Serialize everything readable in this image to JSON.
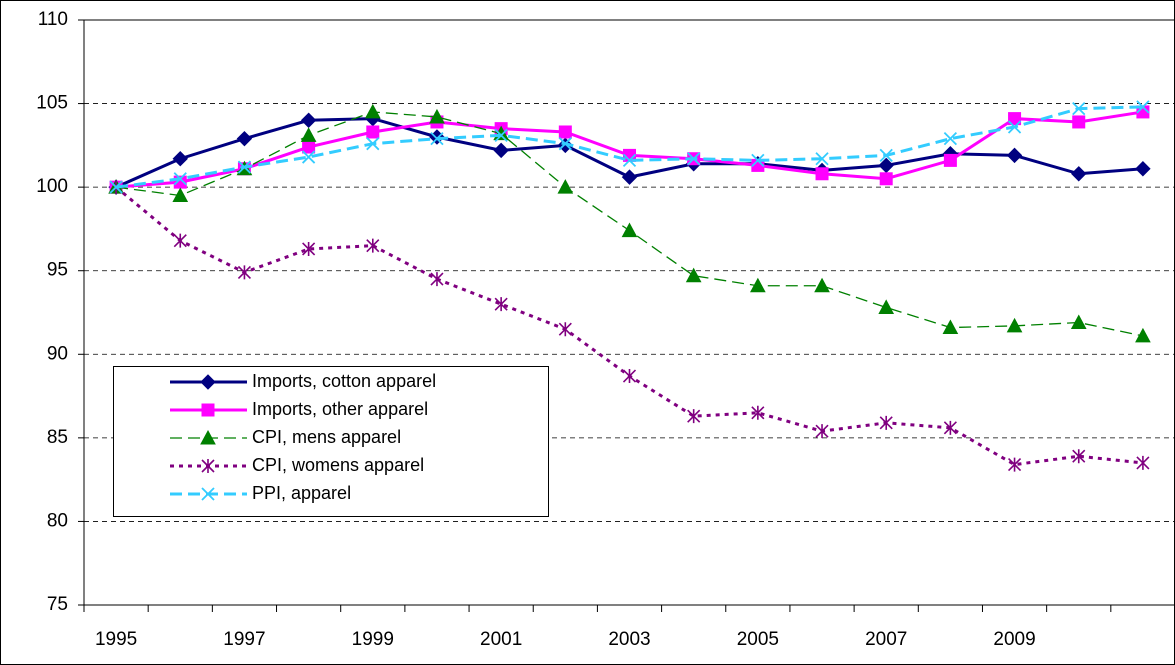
{
  "chart_data": {
    "type": "line",
    "categories": [
      "1995",
      null,
      "1997",
      null,
      "1999",
      null,
      "2001",
      null,
      "2003",
      null,
      "2005",
      null,
      "2007",
      null,
      "2009",
      null,
      null
    ],
    "ylim": [
      75,
      110
    ],
    "yticks": [
      75,
      80,
      85,
      90,
      95,
      100,
      105,
      110
    ],
    "grid": true,
    "series": [
      {
        "name": "Imports, cotton apparel",
        "color": "#000080",
        "marker": "diamond",
        "dash": "solid",
        "width": 3,
        "values": [
          100,
          101.7,
          102.9,
          104,
          104.1,
          103,
          102.2,
          102.5,
          100.6,
          101.4,
          101.4,
          101,
          101.3,
          102,
          101.9,
          100.8,
          101.1
        ]
      },
      {
        "name": "Imports, other apparel",
        "color": "#ff00ff",
        "marker": "square",
        "dash": "solid",
        "width": 3,
        "values": [
          100,
          100.3,
          101.1,
          102.4,
          103.3,
          103.9,
          103.5,
          103.3,
          101.9,
          101.7,
          101.3,
          100.8,
          100.5,
          101.6,
          104.1,
          103.9,
          104.5
        ]
      },
      {
        "name": "CPI, mens apparel",
        "color": "#008000",
        "marker": "triangle",
        "dash": "dashed",
        "width": 1.3,
        "values": [
          100,
          99.5,
          101.1,
          103.1,
          104.5,
          104.2,
          103.2,
          100,
          97.4,
          94.7,
          94.1,
          94.1,
          92.8,
          91.6,
          91.7,
          91.9,
          91.1
        ]
      },
      {
        "name": "CPI, womens apparel",
        "color": "#800080",
        "marker": "star",
        "dash": "dotted",
        "width": 3,
        "values": [
          100,
          96.8,
          94.9,
          96.3,
          96.5,
          94.5,
          93,
          91.5,
          88.7,
          86.3,
          86.5,
          85.4,
          85.9,
          85.6,
          83.4,
          83.9,
          83.5
        ]
      },
      {
        "name": "PPI, apparel",
        "color": "#33ccff",
        "marker": "x",
        "dash": "dashed",
        "width": 3,
        "values": [
          100,
          100.5,
          101.2,
          101.8,
          102.6,
          102.9,
          103.1,
          102.6,
          101.6,
          101.7,
          101.6,
          101.7,
          101.9,
          102.9,
          103.6,
          104.7,
          104.8
        ]
      }
    ]
  }
}
